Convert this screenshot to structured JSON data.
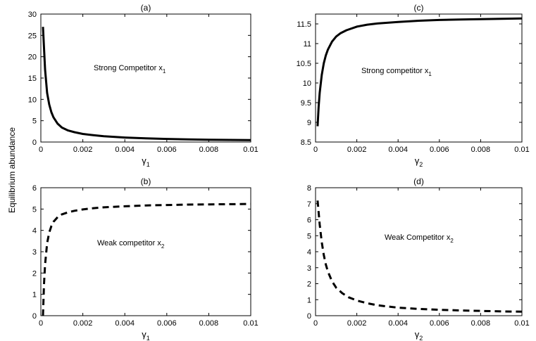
{
  "figure": {
    "shared_ylabel": "Equilibrium abundance"
  },
  "chart_data": [
    {
      "type": "line",
      "title": "(a)",
      "xlabel_symbol": "γ",
      "xlabel_sub": "1",
      "annotation": "Strong Competitor x",
      "annotation_sub": "1",
      "line_style": "solid",
      "xlim": [
        0,
        0.01
      ],
      "ylim": [
        0,
        30
      ],
      "xticks": [
        0,
        0.002,
        0.004,
        0.006,
        0.008,
        0.01
      ],
      "xtick_labels": [
        "0",
        "0.002",
        "0.004",
        "0.006",
        "0.008",
        "0.01"
      ],
      "yticks": [
        0,
        5,
        10,
        15,
        20,
        25,
        30
      ],
      "ytick_labels": [
        "0",
        "5",
        "10",
        "15",
        "20",
        "25",
        "30"
      ],
      "series": [
        {
          "name": "x1",
          "x": [
            0.0001,
            0.0002,
            0.0003,
            0.0004,
            0.0005,
            0.0006,
            0.0008,
            0.001,
            0.0013,
            0.0016,
            0.002,
            0.0025,
            0.003,
            0.004,
            0.005,
            0.006,
            0.007,
            0.008,
            0.009,
            0.01
          ],
          "values": [
            27,
            17,
            11.5,
            8.8,
            7,
            5.8,
            4.3,
            3.4,
            2.7,
            2.3,
            1.9,
            1.6,
            1.35,
            1.05,
            0.85,
            0.72,
            0.62,
            0.55,
            0.5,
            0.45
          ]
        }
      ]
    },
    {
      "type": "line",
      "title": "(c)",
      "xlabel_symbol": "γ",
      "xlabel_sub": "2",
      "annotation": "Strong competitor x",
      "annotation_sub": "1",
      "line_style": "solid",
      "xlim": [
        0,
        0.01
      ],
      "ylim": [
        8.5,
        11.75
      ],
      "xticks": [
        0,
        0.002,
        0.004,
        0.006,
        0.008,
        0.01
      ],
      "xtick_labels": [
        "0",
        "0.002",
        "0.004",
        "0.006",
        "0.008",
        "0.01"
      ],
      "yticks": [
        8.5,
        9,
        9.5,
        10,
        10.5,
        11,
        11.5
      ],
      "ytick_labels": [
        "8.5",
        "9",
        "9.5",
        "10",
        "10.5",
        "11",
        "11.5"
      ],
      "series": [
        {
          "name": "x1",
          "x": [
            0.0001,
            0.00015,
            0.0002,
            0.0003,
            0.0004,
            0.0005,
            0.0006,
            0.0008,
            0.001,
            0.0012,
            0.0015,
            0.002,
            0.0025,
            0.003,
            0.004,
            0.005,
            0.006,
            0.007,
            0.008,
            0.009,
            0.01
          ],
          "values": [
            8.9,
            9.4,
            9.75,
            10.2,
            10.5,
            10.7,
            10.85,
            11.05,
            11.18,
            11.26,
            11.34,
            11.43,
            11.48,
            11.51,
            11.55,
            11.58,
            11.6,
            11.61,
            11.62,
            11.63,
            11.64
          ]
        }
      ]
    },
    {
      "type": "line",
      "title": "(b)",
      "xlabel_symbol": "γ",
      "xlabel_sub": "1",
      "annotation": "Weak competitor x",
      "annotation_sub": "2",
      "line_style": "dashed",
      "xlim": [
        0,
        0.01
      ],
      "ylim": [
        0,
        6
      ],
      "xticks": [
        0,
        0.002,
        0.004,
        0.006,
        0.008,
        0.01
      ],
      "xtick_labels": [
        "0",
        "0.002",
        "0.004",
        "0.006",
        "0.008",
        "0.01"
      ],
      "yticks": [
        0,
        1,
        2,
        3,
        4,
        5,
        6
      ],
      "ytick_labels": [
        "0",
        "1",
        "2",
        "3",
        "4",
        "5",
        "6"
      ],
      "series": [
        {
          "name": "x2",
          "x": [
            0.0001,
            0.00015,
            0.0002,
            0.0003,
            0.0004,
            0.0005,
            0.0006,
            0.0008,
            0.001,
            0.0013,
            0.0016,
            0.002,
            0.0025,
            0.003,
            0.004,
            0.005,
            0.006,
            0.007,
            0.008,
            0.009,
            0.01
          ],
          "values": [
            0,
            1.5,
            2.4,
            3.4,
            3.9,
            4.2,
            4.4,
            4.62,
            4.75,
            4.85,
            4.92,
            4.98,
            5.04,
            5.08,
            5.13,
            5.17,
            5.19,
            5.21,
            5.22,
            5.23,
            5.24
          ]
        }
      ]
    },
    {
      "type": "line",
      "title": "(d)",
      "xlabel_symbol": "γ",
      "xlabel_sub": "2",
      "annotation": "Weak Competitor x",
      "annotation_sub": "2",
      "line_style": "dashed",
      "xlim": [
        0,
        0.01
      ],
      "ylim": [
        0,
        8
      ],
      "xticks": [
        0,
        0.002,
        0.004,
        0.006,
        0.008,
        0.01
      ],
      "xtick_labels": [
        "0",
        "0.002",
        "0.004",
        "0.006",
        "0.008",
        "0.01"
      ],
      "yticks": [
        0,
        1,
        2,
        3,
        4,
        5,
        6,
        7,
        8
      ],
      "ytick_labels": [
        "0",
        "1",
        "2",
        "3",
        "4",
        "5",
        "6",
        "7",
        "8"
      ],
      "series": [
        {
          "name": "x2",
          "x": [
            0.0001,
            0.0002,
            0.0003,
            0.0004,
            0.0005,
            0.0006,
            0.0008,
            0.001,
            0.0013,
            0.0016,
            0.002,
            0.0025,
            0.003,
            0.004,
            0.005,
            0.006,
            0.007,
            0.008,
            0.009,
            0.01
          ],
          "values": [
            7.2,
            5.7,
            4.6,
            3.8,
            3.2,
            2.75,
            2.15,
            1.75,
            1.4,
            1.15,
            0.95,
            0.78,
            0.65,
            0.5,
            0.42,
            0.37,
            0.33,
            0.3,
            0.27,
            0.25
          ]
        }
      ]
    }
  ]
}
